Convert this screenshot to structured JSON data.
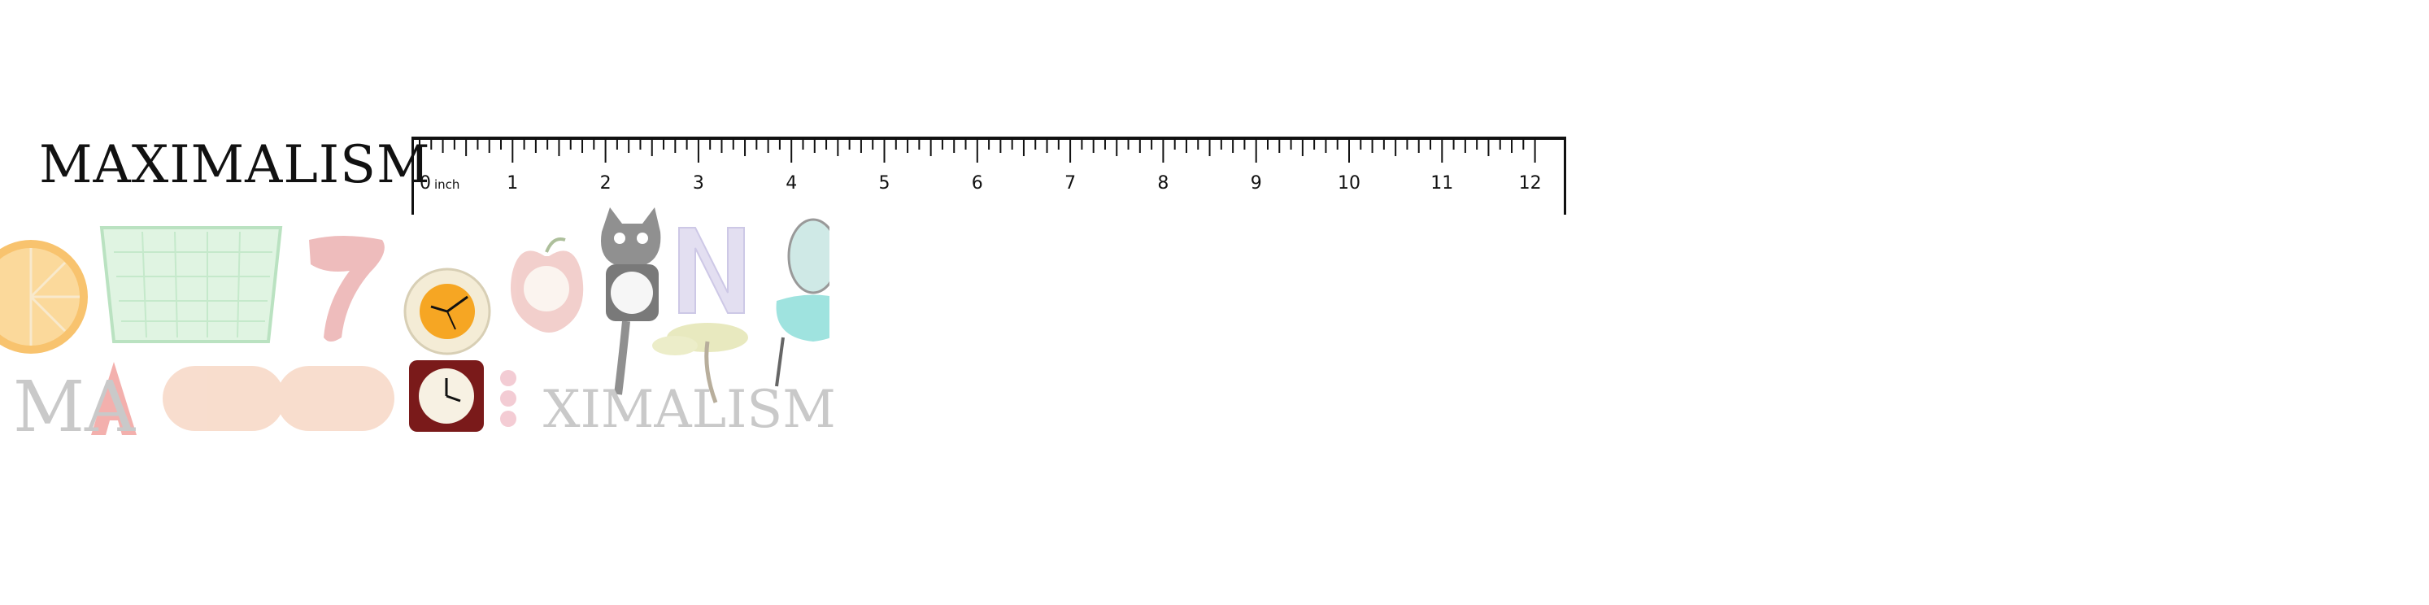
{
  "title": "MAXIMALISM",
  "ruler": {
    "unit_label": "inch",
    "labels": [
      "0",
      "1",
      "2",
      "3",
      "4",
      "5",
      "6",
      "7",
      "8",
      "9",
      "10",
      "11",
      "12"
    ]
  },
  "collage": {
    "letters_start": "MA",
    "letters_end": "XIMALISM",
    "digit": "7",
    "letter_n": "N"
  },
  "colors": {
    "ink": "#111111",
    "ghost_text": "#c9c9c9",
    "orange": "#f6a623",
    "basket_green": "#bfe8c6",
    "pink_clay": "#e7a0a0",
    "sofa_peach": "#f6d2bd",
    "chair_teal": "#9fe3df",
    "clock_red": "#7a1a1a",
    "cat_gray": "#6b6b6b",
    "lavender": "#d8d2ec"
  },
  "icons": [
    "orange-slice-icon",
    "basket-icon",
    "number-seven-icon",
    "orange-clock-icon",
    "apple-clock-icon",
    "cat-clock-icon",
    "letter-n-icon",
    "bonsai-tree-icon",
    "teal-chair-icon",
    "strawberry-letter-a-icon",
    "sofa-icon",
    "red-square-clock-icon",
    "pink-beads-icon"
  ]
}
